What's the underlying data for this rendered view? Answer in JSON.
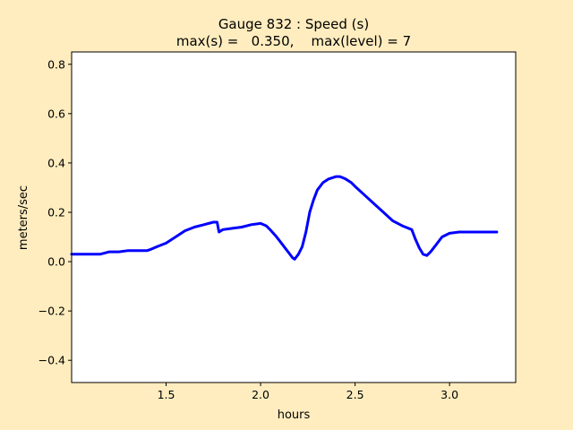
{
  "chart_data": {
    "type": "line",
    "title_line1": "Gauge 832 : Speed (s)",
    "title_line2": "max(s) =   0.350,    max(level) = 7",
    "xlabel": "hours",
    "ylabel": "meters/sec",
    "xlim": [
      1.0,
      3.35
    ],
    "ylim": [
      -0.49,
      0.85
    ],
    "x_ticks": [
      1.5,
      2.0,
      2.5,
      3.0
    ],
    "x_tick_labels": [
      "1.5",
      "2.0",
      "2.5",
      "3.0"
    ],
    "y_ticks": [
      -0.4,
      -0.2,
      0.0,
      0.2,
      0.4,
      0.6,
      0.8
    ],
    "y_tick_labels": [
      "−0.4",
      "−0.2",
      "0.0",
      "0.2",
      "0.4",
      "0.6",
      "0.8"
    ],
    "grid": false,
    "series": [
      {
        "color": "#0000ff",
        "x": [
          1.0,
          1.05,
          1.1,
          1.15,
          1.2,
          1.22,
          1.25,
          1.3,
          1.35,
          1.4,
          1.42,
          1.45,
          1.5,
          1.55,
          1.6,
          1.65,
          1.7,
          1.75,
          1.77,
          1.78,
          1.8,
          1.85,
          1.9,
          1.95,
          2.0,
          2.03,
          2.05,
          2.08,
          2.1,
          2.13,
          2.15,
          2.17,
          2.18,
          2.2,
          2.22,
          2.24,
          2.26,
          2.28,
          2.3,
          2.33,
          2.36,
          2.4,
          2.42,
          2.45,
          2.48,
          2.5,
          2.55,
          2.6,
          2.65,
          2.7,
          2.75,
          2.8,
          2.82,
          2.84,
          2.86,
          2.88,
          2.9,
          2.93,
          2.96,
          3.0,
          3.05,
          3.1,
          3.15,
          3.2,
          3.25
        ],
        "y": [
          0.03,
          0.03,
          0.03,
          0.03,
          0.04,
          0.04,
          0.04,
          0.045,
          0.045,
          0.045,
          0.05,
          0.06,
          0.075,
          0.1,
          0.125,
          0.14,
          0.15,
          0.16,
          0.16,
          0.12,
          0.13,
          0.135,
          0.14,
          0.15,
          0.155,
          0.145,
          0.13,
          0.105,
          0.085,
          0.055,
          0.035,
          0.015,
          0.01,
          0.03,
          0.06,
          0.12,
          0.2,
          0.25,
          0.29,
          0.32,
          0.335,
          0.345,
          0.345,
          0.335,
          0.32,
          0.305,
          0.27,
          0.235,
          0.2,
          0.165,
          0.145,
          0.13,
          0.09,
          0.055,
          0.03,
          0.025,
          0.04,
          0.07,
          0.1,
          0.115,
          0.12,
          0.12,
          0.12,
          0.12,
          0.12
        ]
      }
    ]
  }
}
